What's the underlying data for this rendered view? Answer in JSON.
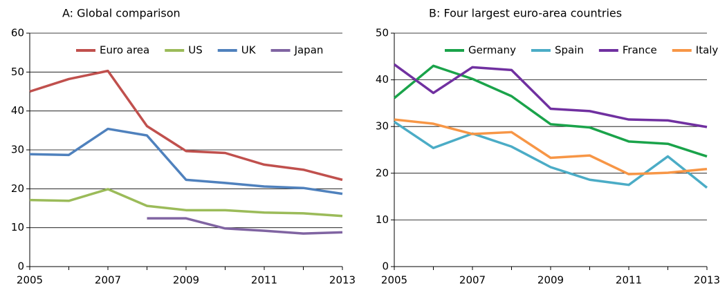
{
  "chart_data": [
    {
      "type": "line",
      "title": "A: Global comparison",
      "x": [
        2005,
        2006,
        2007,
        2008,
        2009,
        2010,
        2011,
        2012,
        2013
      ],
      "xlim": [
        2005,
        2013
      ],
      "xticks": [
        2005,
        2007,
        2009,
        2011,
        2013
      ],
      "ylim": [
        0,
        60
      ],
      "yticks": [
        0,
        10,
        20,
        30,
        40,
        50,
        60
      ],
      "grid": true,
      "legend": "top",
      "series": [
        {
          "name": "Euro area",
          "color": "#c0504d",
          "values": [
            45.0,
            48.2,
            50.3,
            36.1,
            29.7,
            29.2,
            26.2,
            24.9,
            22.3
          ]
        },
        {
          "name": "US",
          "color": "#9bbb59",
          "values": [
            17.1,
            16.9,
            19.9,
            15.6,
            14.5,
            14.5,
            13.9,
            13.7,
            13.0
          ]
        },
        {
          "name": "UK",
          "color": "#4f81bd",
          "values": [
            28.9,
            28.7,
            35.4,
            33.7,
            22.3,
            21.5,
            20.6,
            20.2,
            18.7
          ]
        },
        {
          "name": "Japan",
          "color": "#8064a2",
          "values": [
            null,
            null,
            null,
            12.4,
            12.4,
            9.8,
            9.2,
            8.5,
            8.8
          ]
        }
      ]
    },
    {
      "type": "line",
      "title": "B: Four largest euro-area countries",
      "x": [
        2005,
        2006,
        2007,
        2008,
        2009,
        2010,
        2011,
        2012,
        2013
      ],
      "xlim": [
        2005,
        2013
      ],
      "xticks": [
        2005,
        2007,
        2009,
        2011,
        2013
      ],
      "ylim": [
        0,
        50
      ],
      "yticks": [
        0,
        10,
        20,
        30,
        40,
        50
      ],
      "grid": true,
      "legend": "top",
      "series": [
        {
          "name": "Germany",
          "color": "#1aa34a",
          "values": [
            36.1,
            43.0,
            40.2,
            36.5,
            30.5,
            29.8,
            26.8,
            26.3,
            23.6
          ]
        },
        {
          "name": "Spain",
          "color": "#4bacc6",
          "values": [
            31.0,
            25.4,
            28.5,
            25.7,
            21.3,
            18.6,
            17.5,
            23.6,
            16.9
          ]
        },
        {
          "name": "France",
          "color": "#7030a0",
          "values": [
            43.3,
            37.2,
            42.7,
            42.1,
            33.8,
            33.3,
            31.5,
            31.3,
            29.9
          ]
        },
        {
          "name": "Italy",
          "color": "#f79646",
          "values": [
            31.5,
            30.6,
            28.4,
            28.8,
            23.3,
            23.8,
            19.8,
            20.1,
            20.9
          ]
        }
      ]
    }
  ]
}
